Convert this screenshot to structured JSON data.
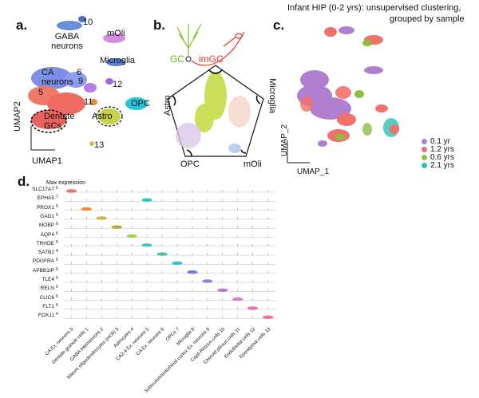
{
  "panel_a": {
    "label": "a.",
    "clusters": {
      "c10": "10",
      "gaba": "GABA neurons",
      "moli": "mOli",
      "microglia": "Microglia",
      "ca": "CA neurons",
      "c6": "6",
      "c9": "9",
      "c5": "5",
      "c12": "12",
      "c11": "11",
      "opc": "OPC",
      "astro": "Astro",
      "dentate": "Dentate GCs",
      "c13": "13"
    },
    "axis_x": "UMAP1",
    "axis_y": "UMAP2"
  },
  "panel_b": {
    "label": "b.",
    "gc": "GC",
    "imgc": "imGC",
    "astro": "Astro",
    "microglia": "Microglia",
    "opc": "OPC",
    "moli": "mOli"
  },
  "panel_c": {
    "label": "c.",
    "title_line1": "Infant HIP (0-2 yrs): unsupervised clustering,",
    "title_line2": "grouped by sample",
    "axis_x": "UMAP_1",
    "axis_y": "UMAP_2",
    "legend": [
      {
        "label": "0.1 yr",
        "color": "#b07fcf"
      },
      {
        "label": "1.2 yrs",
        "color": "#f0706a"
      },
      {
        "label": "0.6 yrs",
        "color": "#8cbf3f"
      },
      {
        "label": "2.1 yrs",
        "color": "#2dbfb7"
      }
    ]
  },
  "panel_d": {
    "label": "d.",
    "max_expression": "Max expression",
    "genes": [
      {
        "name": "SLC17A7",
        "max": "5"
      },
      {
        "name": "EPHA5",
        "max": "7"
      },
      {
        "name": "PROX1",
        "max": "6"
      },
      {
        "name": "GAD1",
        "max": "5"
      },
      {
        "name": "MOBP",
        "max": "6"
      },
      {
        "name": "AQP4",
        "max": "6"
      },
      {
        "name": "TRHDE",
        "max": "5"
      },
      {
        "name": "SATB2",
        "max": "4"
      },
      {
        "name": "PDGFRA",
        "max": "5"
      },
      {
        "name": "APBB1IP",
        "max": "6"
      },
      {
        "name": "TLE4",
        "max": "5"
      },
      {
        "name": "RELN",
        "max": "6"
      },
      {
        "name": "CLIC6",
        "max": "6"
      },
      {
        "name": "FLT1",
        "max": "6"
      },
      {
        "name": "FOXJ1",
        "max": "4"
      }
    ],
    "categories": [
      "CA Ex. neurons 0",
      "Dentate granule cells 1",
      "GABA interneurons 2",
      "Mature oligodendrocytes (mOli) 3",
      "Astrocytes 4",
      "CA2-4 Ex. neurons 5",
      "CA Ex. neurons 6",
      "OPCs 7",
      "Microglia 8",
      "Subiculum/entorhinal cortex Ex. neurons 9",
      "Cajal-Retzius cells 10",
      "Choroid plexus cells 11",
      "Endothelial cells 12",
      "Ependymal cells 13"
    ]
  }
}
